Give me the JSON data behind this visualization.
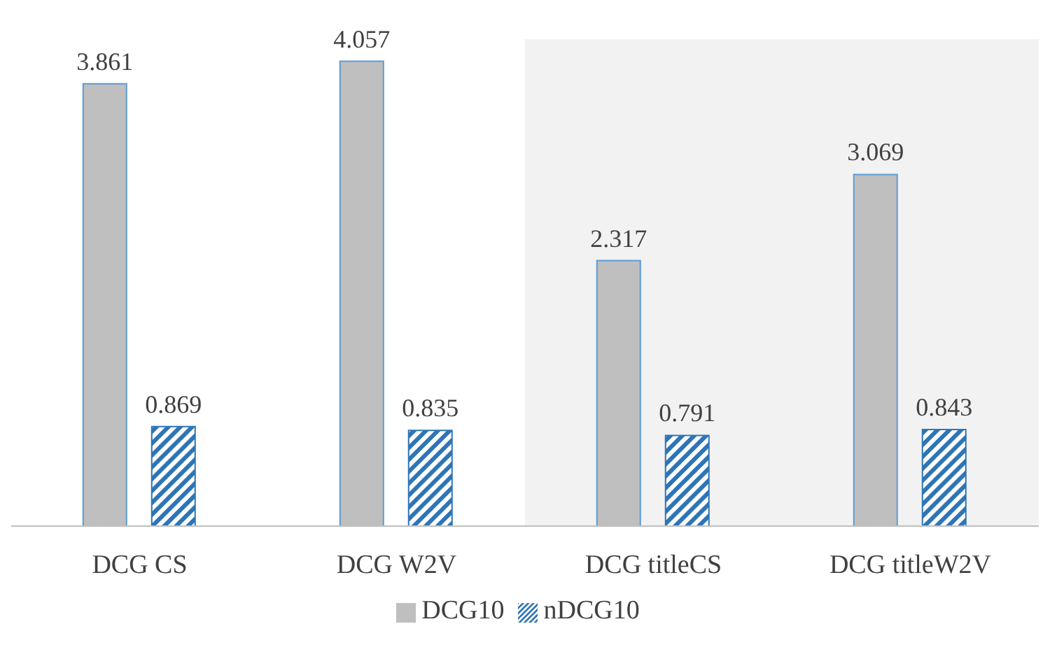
{
  "chart_data": {
    "type": "bar",
    "categories": [
      "DCG CS",
      "DCG W2V",
      "DCG titleCS",
      "DCG titleW2V"
    ],
    "series": [
      {
        "name": "DCG10",
        "color": "#bfbfbf",
        "values": [
          3.861,
          4.057,
          2.317,
          3.069
        ]
      },
      {
        "name": "nDCG10",
        "color": "#2e75b6",
        "values": [
          0.869,
          0.835,
          0.791,
          0.843
        ]
      }
    ],
    "ylim": [
      0,
      4.25
    ],
    "tick_labels": "x",
    "data_labels": true,
    "bands": [
      {
        "axis": "x",
        "from": "DCG titleCS",
        "to": "DCG titleW2V",
        "color": "#f2f2f2"
      }
    ],
    "legend": "bottom"
  }
}
